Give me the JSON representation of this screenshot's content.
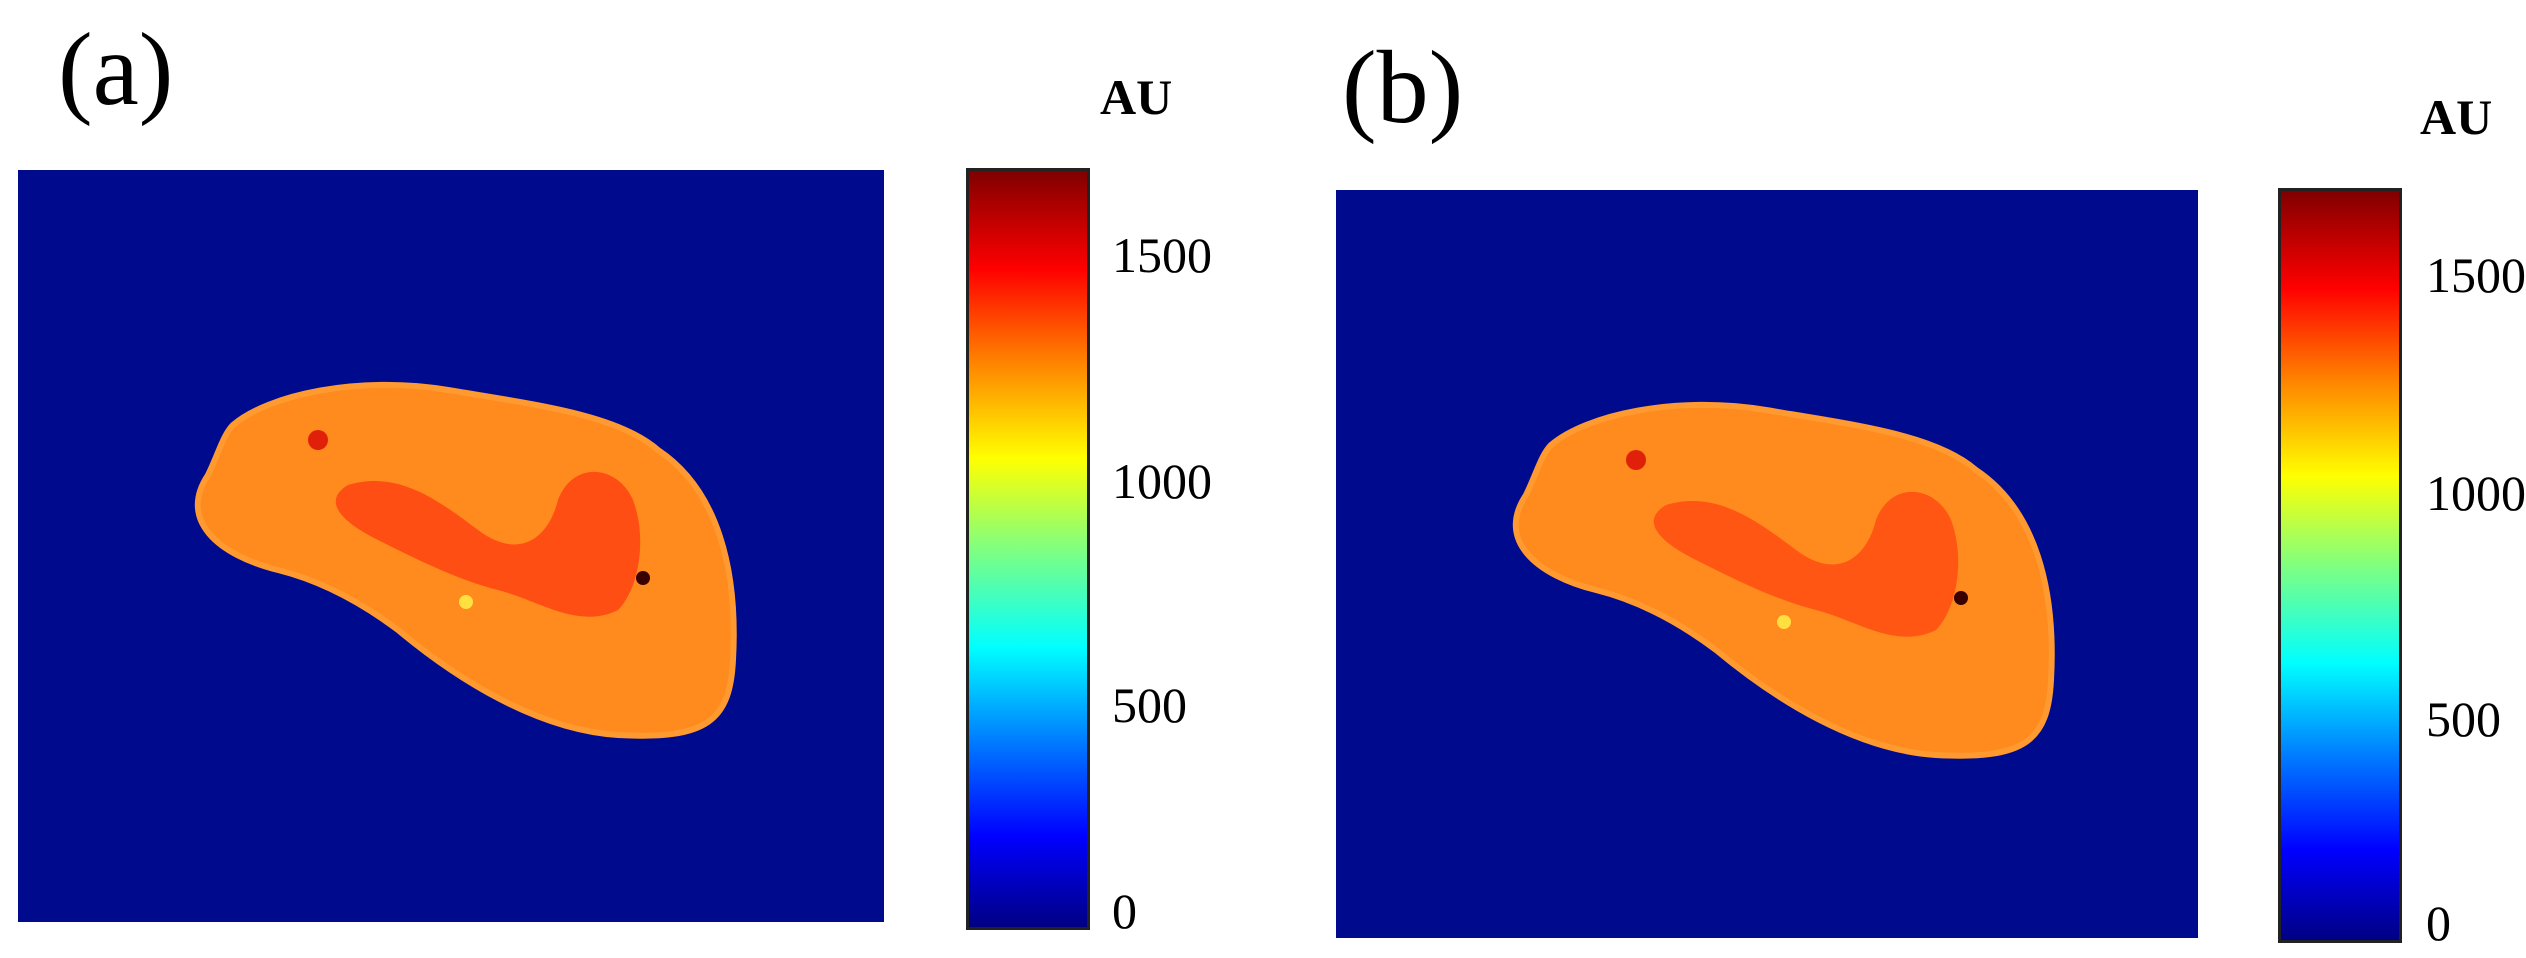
{
  "panels": [
    {
      "label": "(a)",
      "colorbar": {
        "unit": "AU",
        "ticks": [
          "1500",
          "1000",
          "500",
          "0"
        ],
        "max_value": 1650
      }
    },
    {
      "label": "(b)",
      "colorbar": {
        "unit": "AU",
        "ticks": [
          "1500",
          "1000",
          "500",
          "0"
        ],
        "max_value": 1650
      }
    }
  ],
  "colors": {
    "background_map": "#000a8c",
    "tissue_base": "#ff8a1e",
    "tissue_hot": "#ff3a10",
    "tissue_edge": "#ff9a30"
  }
}
